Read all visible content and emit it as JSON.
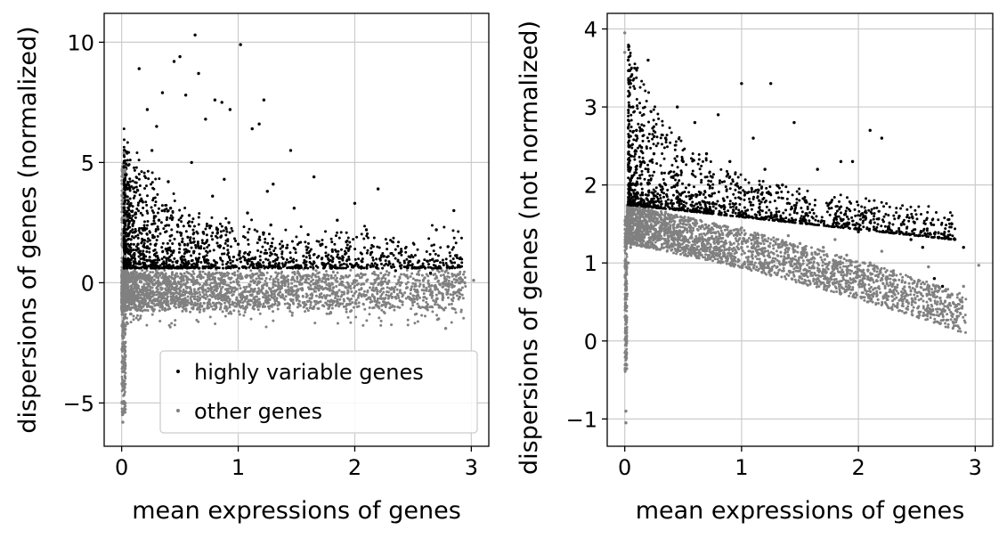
{
  "chart_data": [
    {
      "type": "scatter",
      "xlabel": "mean expressions of genes",
      "ylabel": "dispersions of genes (normalized)",
      "xlim": [
        -0.15,
        3.15
      ],
      "ylim": [
        -6.8,
        11.2
      ],
      "xticks": [
        0,
        1,
        2,
        3
      ],
      "xtick_labels": [
        "0",
        "1",
        "2",
        "3"
      ],
      "yticks": [
        -5,
        0,
        5,
        10
      ],
      "ytick_labels": [
        "−5",
        "0",
        "5",
        "10"
      ],
      "grid": true,
      "legend": {
        "position": "lower-right",
        "entries": [
          "highly variable genes",
          "other genes"
        ]
      },
      "series": [
        {
          "name": "highly variable genes",
          "color": "#000000",
          "points": [
            [
              0.02,
              4.8
            ],
            [
              0.04,
              4.5
            ],
            [
              0.05,
              3.9
            ],
            [
              0.07,
              3.2
            ],
            [
              0.09,
              2.6
            ],
            [
              0.11,
              2.1
            ],
            [
              0.14,
              1.6
            ],
            [
              0.18,
              1.2
            ],
            [
              0.25,
              0.9
            ],
            [
              0.06,
              2.3
            ],
            [
              0.08,
              1.8
            ],
            [
              0.12,
              2.9
            ],
            [
              0.16,
              3.4
            ],
            [
              0.2,
              2.2
            ],
            [
              0.22,
              1.5
            ],
            [
              0.28,
              1.9
            ],
            [
              0.32,
              2.6
            ],
            [
              0.38,
              1.4
            ],
            [
              0.42,
              3.1
            ],
            [
              0.48,
              2.4
            ],
            [
              0.52,
              1.7
            ],
            [
              0.58,
              2.8
            ],
            [
              0.62,
              1.3
            ],
            [
              0.7,
              2.1
            ],
            [
              0.78,
              3.6
            ],
            [
              0.85,
              1.9
            ],
            [
              0.92,
              2.5
            ],
            [
              1.0,
              1.6
            ],
            [
              1.08,
              2.9
            ],
            [
              1.18,
              1.8
            ],
            [
              1.28,
              2.4
            ],
            [
              1.38,
              1.5
            ],
            [
              1.48,
              3.1
            ],
            [
              1.6,
              2.0
            ],
            [
              1.72,
              1.6
            ],
            [
              1.85,
              2.6
            ],
            [
              1.95,
              1.4
            ],
            [
              2.1,
              2.2
            ],
            [
              2.25,
              1.1
            ],
            [
              2.4,
              1.3
            ],
            [
              2.55,
              0.9
            ],
            [
              2.7,
              2.2
            ],
            [
              2.8,
              1.5
            ],
            [
              2.85,
              3.0
            ],
            [
              0.15,
              8.9
            ],
            [
              0.22,
              7.2
            ],
            [
              0.3,
              6.5
            ],
            [
              0.35,
              7.9
            ],
            [
              0.45,
              9.2
            ],
            [
              0.5,
              9.4
            ],
            [
              0.55,
              7.8
            ],
            [
              0.63,
              10.3
            ],
            [
              0.66,
              8.7
            ],
            [
              0.72,
              6.8
            ],
            [
              0.8,
              7.6
            ],
            [
              0.86,
              7.5
            ],
            [
              0.93,
              7.2
            ],
            [
              1.02,
              9.9
            ],
            [
              1.12,
              6.4
            ],
            [
              1.18,
              6.6
            ],
            [
              1.22,
              7.6
            ],
            [
              1.3,
              4.1
            ],
            [
              1.45,
              5.5
            ],
            [
              1.65,
              4.4
            ],
            [
              2.0,
              3.3
            ],
            [
              2.2,
              3.9
            ],
            [
              2.9,
              1.0
            ],
            [
              0.26,
              5.5
            ],
            [
              0.4,
              4.2
            ],
            [
              0.6,
              5.0
            ],
            [
              0.88,
              4.3
            ],
            [
              1.25,
              3.8
            ],
            [
              0.1,
              0.7
            ],
            [
              0.3,
              0.7
            ],
            [
              0.55,
              0.8
            ],
            [
              0.95,
              0.7
            ],
            [
              1.35,
              0.8
            ],
            [
              1.8,
              0.6
            ],
            [
              2.35,
              0.5
            ],
            [
              2.65,
              0.4
            ]
          ]
        },
        {
          "name": "other genes",
          "color": "#808080",
          "points": [
            [
              0.01,
              -3.5
            ],
            [
              0.01,
              -5.8
            ],
            [
              0.01,
              -4.3
            ],
            [
              0.02,
              -2.6
            ],
            [
              0.02,
              -1.5
            ],
            [
              0.02,
              5.4
            ],
            [
              0.03,
              4.7
            ],
            [
              0.03,
              1.1
            ],
            [
              0.05,
              -1.7
            ],
            [
              0.08,
              -1.3
            ],
            [
              0.12,
              -1.1
            ],
            [
              0.15,
              -0.8
            ],
            [
              0.25,
              -0.6
            ],
            [
              0.35,
              -1.0
            ],
            [
              0.45,
              -0.7
            ],
            [
              0.55,
              -0.4
            ],
            [
              0.65,
              -1.1
            ],
            [
              0.75,
              -0.8
            ],
            [
              0.85,
              -0.5
            ],
            [
              0.95,
              -0.9
            ],
            [
              1.05,
              -0.6
            ],
            [
              1.15,
              -0.8
            ],
            [
              1.25,
              -0.4
            ],
            [
              1.35,
              -0.9
            ],
            [
              1.45,
              -0.7
            ],
            [
              1.55,
              -0.3
            ],
            [
              1.65,
              -1.0
            ],
            [
              1.75,
              -0.6
            ],
            [
              1.85,
              -0.4
            ],
            [
              1.95,
              -0.9
            ],
            [
              2.05,
              -0.5
            ],
            [
              2.15,
              -0.3
            ],
            [
              2.25,
              -0.8
            ],
            [
              2.35,
              -0.6
            ],
            [
              2.45,
              -0.2
            ],
            [
              2.55,
              -1.0
            ],
            [
              2.65,
              -0.5
            ],
            [
              2.72,
              -1.5
            ],
            [
              2.78,
              -1.9
            ],
            [
              2.85,
              -0.4
            ],
            [
              2.9,
              -0.6
            ],
            [
              3.02,
              0.1
            ],
            [
              0.2,
              0.3
            ],
            [
              0.4,
              0.2
            ],
            [
              0.6,
              0.3
            ],
            [
              0.8,
              0.1
            ],
            [
              1.0,
              0.2
            ],
            [
              1.2,
              0.4
            ],
            [
              1.4,
              0.1
            ],
            [
              1.6,
              0.3
            ],
            [
              1.8,
              0.2
            ],
            [
              2.0,
              0.1
            ],
            [
              2.2,
              0.3
            ],
            [
              2.4,
              0.0
            ],
            [
              2.6,
              0.2
            ],
            [
              2.75,
              0.5
            ]
          ]
        }
      ]
    },
    {
      "type": "scatter",
      "xlabel": "mean expressions of genes",
      "ylabel": "dispersions of genes (not normalized)",
      "xlim": [
        -0.15,
        3.15
      ],
      "ylim": [
        -1.35,
        4.2
      ],
      "xticks": [
        0,
        1,
        2,
        3
      ],
      "xtick_labels": [
        "0",
        "1",
        "2",
        "3"
      ],
      "yticks": [
        -1,
        0,
        1,
        2,
        3,
        4
      ],
      "ytick_labels": [
        "−1",
        "0",
        "1",
        "2",
        "3",
        "4"
      ],
      "grid": true,
      "series": [
        {
          "name": "highly variable genes",
          "color": "#000000",
          "points": [
            [
              0.03,
              3.6
            ],
            [
              0.05,
              3.3
            ],
            [
              0.07,
              3.0
            ],
            [
              0.1,
              2.7
            ],
            [
              0.13,
              2.5
            ],
            [
              0.16,
              2.3
            ],
            [
              0.2,
              2.2
            ],
            [
              0.25,
              2.4
            ],
            [
              0.3,
              2.0
            ],
            [
              0.35,
              2.6
            ],
            [
              0.4,
              2.1
            ],
            [
              0.45,
              3.0
            ],
            [
              0.5,
              2.3
            ],
            [
              0.55,
              2.0
            ],
            [
              0.6,
              2.8
            ],
            [
              0.65,
              1.9
            ],
            [
              0.7,
              2.4
            ],
            [
              0.75,
              2.1
            ],
            [
              0.8,
              2.9
            ],
            [
              0.85,
              1.8
            ],
            [
              0.9,
              2.3
            ],
            [
              0.95,
              2.0
            ],
            [
              1.0,
              3.3
            ],
            [
              1.05,
              1.9
            ],
            [
              1.1,
              2.6
            ],
            [
              1.15,
              1.8
            ],
            [
              1.2,
              2.2
            ],
            [
              1.25,
              3.3
            ],
            [
              1.3,
              1.9
            ],
            [
              1.35,
              2.0
            ],
            [
              1.45,
              2.8
            ],
            [
              1.55,
              1.8
            ],
            [
              1.65,
              2.2
            ],
            [
              1.75,
              1.7
            ],
            [
              1.85,
              2.3
            ],
            [
              1.95,
              2.3
            ],
            [
              2.1,
              2.7
            ],
            [
              2.2,
              2.6
            ],
            [
              2.35,
              1.6
            ],
            [
              2.45,
              1.3
            ],
            [
              2.55,
              1.2
            ],
            [
              2.65,
              0.8
            ],
            [
              2.72,
              0.7
            ],
            [
              2.8,
              1.5
            ],
            [
              2.9,
              1.2
            ],
            [
              0.2,
              3.6
            ],
            [
              0.05,
              1.8
            ],
            [
              0.15,
              1.9
            ],
            [
              0.4,
              1.8
            ],
            [
              0.7,
              1.7
            ],
            [
              1.0,
              1.6
            ],
            [
              1.3,
              1.6
            ],
            [
              1.6,
              1.5
            ],
            [
              2.0,
              1.4
            ]
          ]
        },
        {
          "name": "other genes",
          "color": "#808080",
          "points": [
            [
              0.0,
              3.95
            ],
            [
              0.0,
              3.7
            ],
            [
              0.01,
              -0.9
            ],
            [
              0.01,
              -1.05
            ],
            [
              0.01,
              -0.3
            ],
            [
              0.01,
              0.1
            ],
            [
              0.02,
              0.6
            ],
            [
              0.03,
              1.0
            ],
            [
              0.05,
              1.2
            ],
            [
              0.1,
              1.3
            ],
            [
              0.2,
              1.4
            ],
            [
              0.3,
              1.45
            ],
            [
              0.4,
              1.35
            ],
            [
              0.5,
              1.5
            ],
            [
              0.6,
              1.3
            ],
            [
              0.7,
              1.45
            ],
            [
              0.8,
              1.25
            ],
            [
              0.9,
              1.4
            ],
            [
              1.0,
              1.2
            ],
            [
              1.1,
              1.35
            ],
            [
              1.2,
              1.15
            ],
            [
              1.3,
              1.3
            ],
            [
              1.4,
              1.1
            ],
            [
              1.5,
              1.25
            ],
            [
              1.6,
              1.05
            ],
            [
              1.7,
              1.2
            ],
            [
              1.8,
              1.0
            ],
            [
              1.9,
              1.1
            ],
            [
              2.0,
              0.9
            ],
            [
              2.1,
              1.0
            ],
            [
              2.2,
              0.8
            ],
            [
              2.3,
              0.9
            ],
            [
              2.4,
              0.75
            ],
            [
              2.5,
              0.7
            ],
            [
              2.6,
              0.65
            ],
            [
              2.7,
              0.55
            ],
            [
              2.8,
              0.6
            ],
            [
              2.9,
              0.7
            ],
            [
              3.03,
              0.97
            ],
            [
              0.15,
              1.6
            ],
            [
              0.35,
              1.65
            ],
            [
              0.6,
              1.55
            ],
            [
              1.0,
              1.45
            ],
            [
              1.4,
              1.35
            ],
            [
              1.8,
              1.3
            ],
            [
              2.2,
              1.15
            ],
            [
              2.6,
              0.95
            ]
          ]
        }
      ]
    }
  ]
}
